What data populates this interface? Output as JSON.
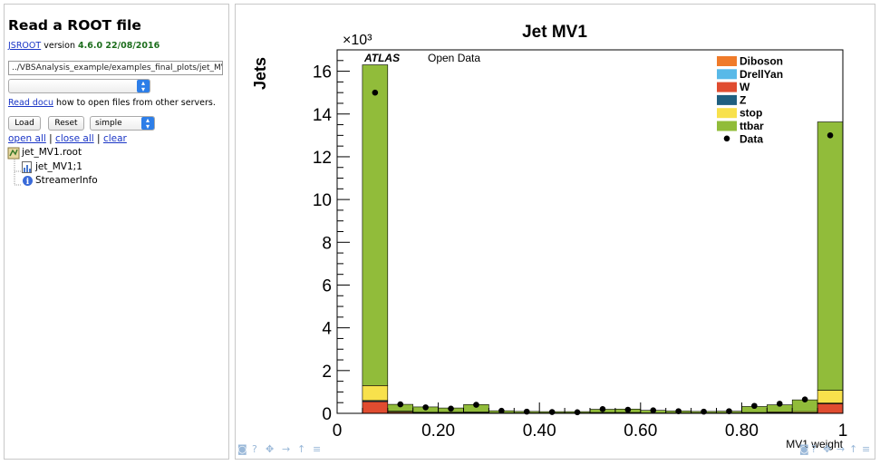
{
  "left": {
    "title": "Read a ROOT file",
    "jsroot_link": "JSROOT",
    "version_text": " version ",
    "version": "4.6.0 22/08/2016",
    "file_path": "../VBSAnalysis_example/examples_final_plots/jet_MV",
    "read_docu_link": "Read docu",
    "docu_text": " how to open files from other servers.",
    "load_label": "Load",
    "reset_label": "Reset",
    "layout_value": "simple",
    "open_all": "open all",
    "close_all": "close all",
    "clear": "clear",
    "sep": "|",
    "tree": {
      "file": "jet_MV1.root",
      "hist": "jet_MV1;1",
      "streamer": "StreamerInfo"
    }
  },
  "canvas": {
    "icon_names": [
      "camera-icon",
      "help-icon",
      "move-icon",
      "arrow-right-icon",
      "arrow-up-icon",
      "menu-icon"
    ]
  },
  "chart_data": {
    "type": "bar",
    "title": "Jet MV1",
    "xlabel": "MV1 weight",
    "ylabel": "Jets",
    "exponent_label": "×10³",
    "xlim": [
      0,
      1
    ],
    "ylim": [
      0,
      17
    ],
    "xticks": [
      "0",
      "0.20",
      "0.40",
      "0.60",
      "0.80",
      "1"
    ],
    "yticks": [
      "0",
      "2",
      "4",
      "6",
      "8",
      "10",
      "12",
      "14",
      "16"
    ],
    "atlas_label": "ATLAS",
    "atlas_sub": "Open Data",
    "bin_edges": [
      0.05,
      0.1,
      0.15,
      0.2,
      0.25,
      0.3,
      0.35,
      0.4,
      0.45,
      0.5,
      0.55,
      0.6,
      0.65,
      0.7,
      0.75,
      0.8,
      0.85,
      0.9,
      0.95,
      1.0
    ],
    "series": [
      {
        "name": "Diboson",
        "color": "#f07b2a",
        "values": [
          0,
          0,
          0,
          0,
          0,
          0,
          0,
          0,
          0,
          0,
          0,
          0,
          0,
          0,
          0,
          0,
          0,
          0,
          0
        ]
      },
      {
        "name": "DrellYan",
        "color": "#58b9e8",
        "values": [
          0,
          0,
          0,
          0,
          0,
          0,
          0,
          0,
          0,
          0,
          0,
          0,
          0,
          0,
          0,
          0,
          0,
          0,
          0
        ]
      },
      {
        "name": "W",
        "color": "#e04c30",
        "values": [
          0.55,
          0.05,
          0.03,
          0.03,
          0.03,
          0.01,
          0.01,
          0.01,
          0.01,
          0.02,
          0.02,
          0.01,
          0.01,
          0.01,
          0.01,
          0.02,
          0.03,
          0.03,
          0.45
        ]
      },
      {
        "name": "Z",
        "color": "#1f5f80",
        "values": [
          0.05,
          0.01,
          0,
          0,
          0,
          0,
          0,
          0,
          0,
          0,
          0,
          0,
          0,
          0,
          0,
          0,
          0,
          0,
          0.03
        ]
      },
      {
        "name": "stop",
        "color": "#f8e14c",
        "values": [
          0.7,
          0.04,
          0.02,
          0.02,
          0.03,
          0.01,
          0.01,
          0.01,
          0.01,
          0.02,
          0.02,
          0.01,
          0.01,
          0.01,
          0.01,
          0.02,
          0.04,
          0.05,
          0.6
        ]
      },
      {
        "name": "ttbar",
        "color": "#91bc3a",
        "values": [
          15.0,
          0.32,
          0.25,
          0.2,
          0.35,
          0.1,
          0.07,
          0.06,
          0.06,
          0.15,
          0.16,
          0.12,
          0.09,
          0.07,
          0.08,
          0.28,
          0.33,
          0.55,
          12.55
        ]
      }
    ],
    "data": {
      "name": "Data",
      "values": [
        15.0,
        0.42,
        0.28,
        0.22,
        0.4,
        0.12,
        0.08,
        0.06,
        0.05,
        0.2,
        0.17,
        0.14,
        0.1,
        0.08,
        0.1,
        0.35,
        0.45,
        0.65,
        13.0
      ]
    },
    "legend_position": "top-right",
    "grid": false
  }
}
